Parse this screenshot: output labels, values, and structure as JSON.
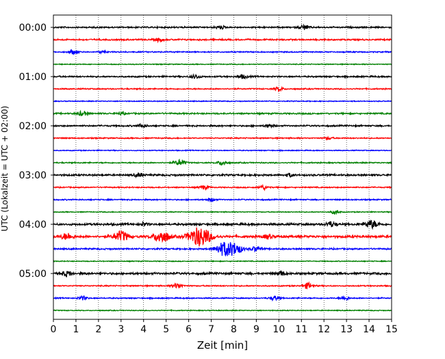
{
  "chart_data": {
    "type": "line",
    "xlabel": "Zeit  [min]",
    "ylabel": "UTC (Lokalzeit = UTC + 02:00)",
    "xlim": [
      0,
      15
    ],
    "x_ticks": [
      0,
      1,
      2,
      3,
      4,
      5,
      6,
      7,
      8,
      9,
      10,
      11,
      12,
      13,
      14,
      15
    ],
    "x_tick_labels": [
      "0",
      "1",
      "2",
      "3",
      "4",
      "5",
      "6",
      "7",
      "8",
      "9",
      "10",
      "11",
      "12",
      "13",
      "14",
      "15"
    ],
    "y_tick_labels": [
      "00:00",
      "01:00",
      "02:00",
      "03:00",
      "04:00",
      "05:00"
    ],
    "y_tick_rows": [
      0,
      4,
      8,
      12,
      16,
      20
    ],
    "row_count": 24,
    "grid": "vertical-dotted",
    "colors": [
      "#000000",
      "#ff0000",
      "#0000ff",
      "#008000"
    ],
    "series": [
      {
        "start": "00:00",
        "color": "#000000",
        "activity": 0.1,
        "bursts": [
          {
            "t": 11.1,
            "a": 0.35
          },
          {
            "t": 7.4,
            "a": 0.25
          }
        ]
      },
      {
        "start": "00:15",
        "color": "#ff0000",
        "activity": 0.1,
        "bursts": [
          {
            "t": 4.7,
            "a": 0.25
          }
        ]
      },
      {
        "start": "00:30",
        "color": "#0000ff",
        "activity": 0.08,
        "bursts": [
          {
            "t": 0.9,
            "a": 0.3
          },
          {
            "t": 2.2,
            "a": 0.2
          }
        ]
      },
      {
        "start": "00:45",
        "color": "#008000",
        "activity": 0.06,
        "bursts": []
      },
      {
        "start": "01:00",
        "color": "#000000",
        "activity": 0.1,
        "bursts": [
          {
            "t": 6.3,
            "a": 0.3
          },
          {
            "t": 8.4,
            "a": 0.3
          }
        ]
      },
      {
        "start": "01:15",
        "color": "#ff0000",
        "activity": 0.08,
        "bursts": [
          {
            "t": 10.0,
            "a": 0.3
          }
        ]
      },
      {
        "start": "01:30",
        "color": "#0000ff",
        "activity": 0.06,
        "bursts": []
      },
      {
        "start": "01:45",
        "color": "#008000",
        "activity": 0.1,
        "bursts": [
          {
            "t": 1.3,
            "a": 0.35
          },
          {
            "t": 3.0,
            "a": 0.2
          }
        ]
      },
      {
        "start": "02:00",
        "color": "#000000",
        "activity": 0.1,
        "bursts": [
          {
            "t": 3.9,
            "a": 0.3
          },
          {
            "t": 9.6,
            "a": 0.25
          }
        ]
      },
      {
        "start": "02:15",
        "color": "#ff0000",
        "activity": 0.08,
        "bursts": [
          {
            "t": 12.2,
            "a": 0.2
          }
        ]
      },
      {
        "start": "02:30",
        "color": "#0000ff",
        "activity": 0.06,
        "bursts": []
      },
      {
        "start": "02:45",
        "color": "#008000",
        "activity": 0.08,
        "bursts": [
          {
            "t": 5.6,
            "a": 0.45
          },
          {
            "t": 7.5,
            "a": 0.35
          }
        ]
      },
      {
        "start": "03:00",
        "color": "#000000",
        "activity": 0.12,
        "bursts": [
          {
            "t": 3.8,
            "a": 0.3
          },
          {
            "t": 10.5,
            "a": 0.25
          }
        ]
      },
      {
        "start": "03:15",
        "color": "#ff0000",
        "activity": 0.08,
        "bursts": [
          {
            "t": 6.7,
            "a": 0.3
          },
          {
            "t": 9.3,
            "a": 0.35
          }
        ]
      },
      {
        "start": "03:30",
        "color": "#0000ff",
        "activity": 0.08,
        "bursts": [
          {
            "t": 7.0,
            "a": 0.25
          }
        ]
      },
      {
        "start": "03:45",
        "color": "#008000",
        "activity": 0.06,
        "bursts": [
          {
            "t": 12.5,
            "a": 0.3
          }
        ]
      },
      {
        "start": "04:00",
        "color": "#000000",
        "activity": 0.14,
        "bursts": [
          {
            "t": 14.1,
            "a": 0.6
          },
          {
            "t": 12.3,
            "a": 0.4
          },
          {
            "t": 4.0,
            "a": 0.25
          }
        ]
      },
      {
        "start": "04:15",
        "color": "#ff0000",
        "activity": 0.16,
        "bursts": [
          {
            "t": 0.6,
            "a": 0.5
          },
          {
            "t": 3.0,
            "a": 0.8
          },
          {
            "t": 4.8,
            "a": 0.9
          },
          {
            "t": 6.5,
            "a": 1.5
          },
          {
            "t": 9.5,
            "a": 0.3
          }
        ]
      },
      {
        "start": "04:30",
        "color": "#0000ff",
        "activity": 0.1,
        "bursts": [
          {
            "t": 7.6,
            "a": 1.1
          },
          {
            "t": 8.1,
            "a": 0.7
          },
          {
            "t": 9.0,
            "a": 0.4
          }
        ]
      },
      {
        "start": "04:45",
        "color": "#008000",
        "activity": 0.06,
        "bursts": []
      },
      {
        "start": "05:00",
        "color": "#000000",
        "activity": 0.14,
        "bursts": [
          {
            "t": 0.6,
            "a": 0.4
          },
          {
            "t": 10.1,
            "a": 0.35
          }
        ]
      },
      {
        "start": "05:15",
        "color": "#ff0000",
        "activity": 0.08,
        "bursts": [
          {
            "t": 5.5,
            "a": 0.4
          },
          {
            "t": 11.3,
            "a": 0.45
          }
        ]
      },
      {
        "start": "05:30",
        "color": "#0000ff",
        "activity": 0.08,
        "bursts": [
          {
            "t": 1.3,
            "a": 0.3
          },
          {
            "t": 9.8,
            "a": 0.35
          },
          {
            "t": 12.9,
            "a": 0.3
          }
        ]
      },
      {
        "start": "05:45",
        "color": "#008000",
        "activity": 0.06,
        "bursts": []
      }
    ]
  }
}
